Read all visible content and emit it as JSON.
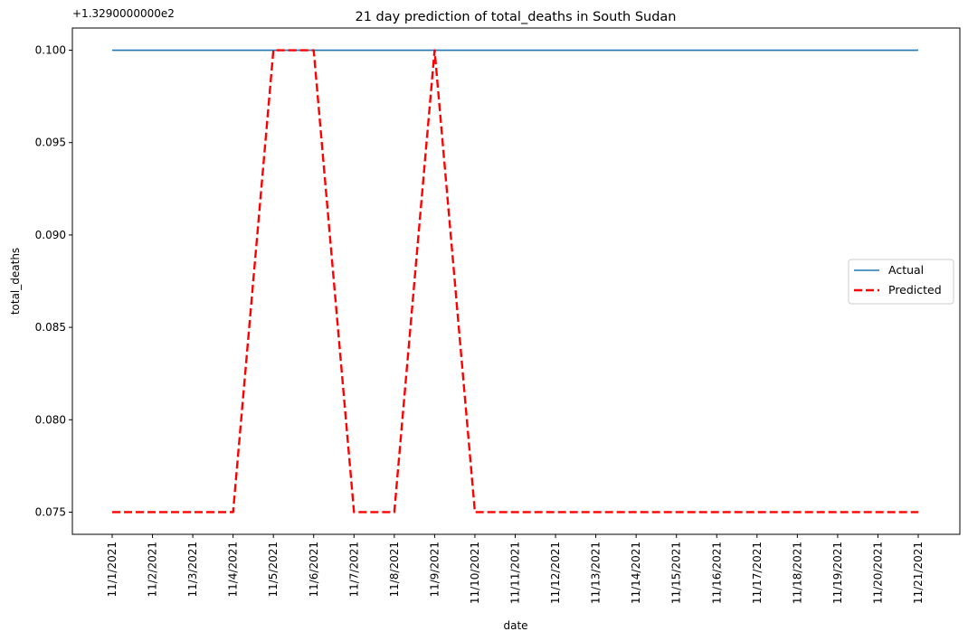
{
  "chart_data": {
    "type": "line",
    "title": "21 day prediction of total_deaths in South Sudan",
    "xlabel": "date",
    "ylabel": "total_deaths",
    "offset_label": "+1.3290000000e2",
    "x": [
      "11/1/2021",
      "11/2/2021",
      "11/3/2021",
      "11/4/2021",
      "11/5/2021",
      "11/6/2021",
      "11/7/2021",
      "11/8/2021",
      "11/9/2021",
      "11/10/2021",
      "11/11/2021",
      "11/12/2021",
      "11/13/2021",
      "11/14/2021",
      "11/15/2021",
      "11/16/2021",
      "11/17/2021",
      "11/18/2021",
      "11/19/2021",
      "11/20/2021",
      "11/21/2021"
    ],
    "yticks": [
      "0.075",
      "0.080",
      "0.085",
      "0.090",
      "0.095",
      "0.100"
    ],
    "ylim": [
      0.0738,
      0.1012
    ],
    "series": [
      {
        "name": "Actual",
        "color": "#1f77b4",
        "style": "solid",
        "values": [
          0.1,
          0.1,
          0.1,
          0.1,
          0.1,
          0.1,
          0.1,
          0.1,
          0.1,
          0.1,
          0.1,
          0.1,
          0.1,
          0.1,
          0.1,
          0.1,
          0.1,
          0.1,
          0.1,
          0.1,
          0.1
        ]
      },
      {
        "name": "Predicted",
        "color": "#ff0000",
        "style": "dashed",
        "values": [
          0.075,
          0.075,
          0.075,
          0.075,
          0.1,
          0.1,
          0.075,
          0.075,
          0.1,
          0.075,
          0.075,
          0.075,
          0.075,
          0.075,
          0.075,
          0.075,
          0.075,
          0.075,
          0.075,
          0.075,
          0.075
        ]
      }
    ],
    "legend_position": "center-right",
    "grid": false
  }
}
